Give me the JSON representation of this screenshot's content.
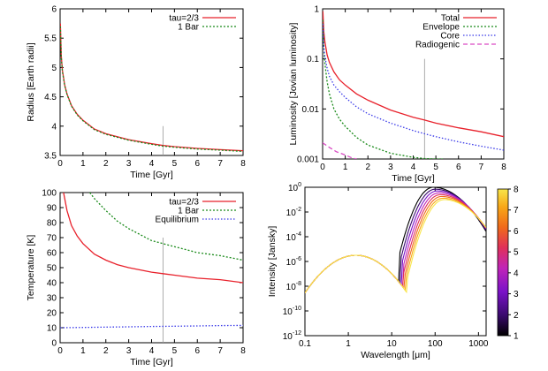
{
  "chart_data": [
    {
      "id": "radius",
      "type": "line",
      "xlabel": "Time [Gyr]",
      "ylabel": "Radius [Earth radii]",
      "xlim": [
        0,
        8
      ],
      "ylim": [
        3.5,
        6
      ],
      "xticks": [
        "0",
        "1",
        "2",
        "3",
        "4",
        "5",
        "6",
        "7",
        "8"
      ],
      "yticks": [
        "3.5",
        "4",
        "4.5",
        "5",
        "5.5",
        "6"
      ],
      "legend": "top-right",
      "vline_x": 4.5,
      "series": [
        {
          "name": "tau=2/3",
          "color": "#e8212b",
          "dash": "",
          "x": [
            0.01,
            0.05,
            0.1,
            0.2,
            0.3,
            0.5,
            0.75,
            1,
            1.5,
            2,
            2.5,
            3,
            4,
            4.5,
            5,
            6,
            7,
            8
          ],
          "y": [
            5.75,
            5.2,
            4.95,
            4.7,
            4.55,
            4.35,
            4.2,
            4.1,
            3.95,
            3.87,
            3.82,
            3.77,
            3.7,
            3.67,
            3.65,
            3.62,
            3.6,
            3.58
          ]
        },
        {
          "name": "1 Bar",
          "color": "#1a8a1a",
          "dash": "2,2",
          "x": [
            0.01,
            0.05,
            0.1,
            0.2,
            0.3,
            0.5,
            0.75,
            1,
            1.5,
            2,
            2.5,
            3,
            4,
            4.5,
            5,
            6,
            7,
            8
          ],
          "y": [
            5.7,
            5.18,
            4.93,
            4.69,
            4.54,
            4.34,
            4.19,
            4.09,
            3.94,
            3.86,
            3.81,
            3.76,
            3.69,
            3.66,
            3.64,
            3.61,
            3.59,
            3.57
          ]
        }
      ]
    },
    {
      "id": "luminosity",
      "type": "line",
      "xlabel": "Time [Gyr]",
      "ylabel": "Luminosity [Jovian luminosity]",
      "xlim": [
        0,
        8
      ],
      "ylim": [
        0.001,
        1
      ],
      "yscale": "log",
      "xticks": [
        "0",
        "1",
        "2",
        "3",
        "4",
        "5",
        "6",
        "7",
        "8"
      ],
      "yticks": [
        "0.001",
        "0.01",
        "0.1",
        "1"
      ],
      "legend": "top-right",
      "vline_x": 4.5,
      "series": [
        {
          "name": "Total",
          "color": "#e8212b",
          "dash": "",
          "x": [
            0.01,
            0.05,
            0.1,
            0.2,
            0.3,
            0.5,
            0.75,
            1,
            1.5,
            2,
            3,
            4,
            4.5,
            5,
            6,
            7,
            8
          ],
          "y": [
            0.9,
            0.35,
            0.22,
            0.12,
            0.085,
            0.055,
            0.038,
            0.03,
            0.02,
            0.015,
            0.0095,
            0.0068,
            0.006,
            0.0052,
            0.0042,
            0.0035,
            0.0028
          ]
        },
        {
          "name": "Envelope",
          "color": "#1a8a1a",
          "dash": "2,2",
          "x": [
            0.01,
            0.05,
            0.1,
            0.2,
            0.3,
            0.5,
            0.75,
            1,
            1.5,
            2,
            3,
            4,
            4.5,
            5,
            5.3
          ],
          "y": [
            0.6,
            0.18,
            0.08,
            0.035,
            0.02,
            0.01,
            0.0062,
            0.0045,
            0.0027,
            0.0019,
            0.0013,
            0.00108,
            0.00102,
            0.001,
            0.001
          ]
        },
        {
          "name": "Core",
          "color": "#3a3ae8",
          "dash": "1.5,2",
          "x": [
            0.01,
            0.05,
            0.1,
            0.2,
            0.3,
            0.5,
            0.75,
            1,
            1.5,
            2,
            3,
            4,
            4.5,
            5,
            6,
            7,
            8
          ],
          "y": [
            0.5,
            0.17,
            0.11,
            0.065,
            0.045,
            0.03,
            0.022,
            0.017,
            0.011,
            0.008,
            0.0052,
            0.0037,
            0.0032,
            0.0028,
            0.0022,
            0.0018,
            0.0015
          ]
        },
        {
          "name": "Radiogenic",
          "color": "#d94ac4",
          "dash": "5,3",
          "x": [
            0,
            0.3,
            0.6,
            1,
            1.3,
            1.5
          ],
          "y": [
            0.0021,
            0.0017,
            0.0014,
            0.0012,
            0.00105,
            0.001
          ]
        }
      ]
    },
    {
      "id": "temperature",
      "type": "line",
      "xlabel": "Time [Gyr]",
      "ylabel": "Temperature [K]",
      "xlim": [
        0,
        8
      ],
      "ylim": [
        0,
        100
      ],
      "xticks": [
        "0",
        "1",
        "2",
        "3",
        "4",
        "5",
        "6",
        "7",
        "8"
      ],
      "yticks": [
        "0",
        "10",
        "20",
        "30",
        "40",
        "50",
        "60",
        "70",
        "80",
        "90",
        "100"
      ],
      "legend": "top-right",
      "vline_x": 4.5,
      "series": [
        {
          "name": "tau=2/3",
          "color": "#e8212b",
          "dash": "",
          "x": [
            0.15,
            0.3,
            0.5,
            0.75,
            1,
            1.5,
            2,
            2.5,
            3,
            4,
            4.5,
            5,
            6,
            7,
            8
          ],
          "y": [
            100,
            88,
            78,
            71,
            66,
            59,
            55,
            52,
            50,
            47,
            46,
            45,
            43,
            42,
            40
          ]
        },
        {
          "name": "1 Bar",
          "color": "#1a8a1a",
          "dash": "2,2",
          "x": [
            1.3,
            1.5,
            2,
            2.5,
            3,
            3.5,
            4,
            4.5,
            5,
            6,
            7,
            8
          ],
          "y": [
            100,
            96,
            88,
            81,
            76,
            72,
            68,
            66,
            64,
            60,
            58,
            55
          ]
        },
        {
          "name": "Equilibrium",
          "color": "#3a3ae8",
          "dash": "1.5,2",
          "x": [
            0,
            1,
            2,
            3,
            4,
            5,
            6,
            7,
            8
          ],
          "y": [
            10,
            10.2,
            10.4,
            10.6,
            10.8,
            11,
            11.2,
            11.4,
            11.5
          ]
        }
      ]
    },
    {
      "id": "spectrum",
      "type": "line",
      "xlabel": "Wavelength [μm]",
      "ylabel": "Intensity [Jansky]",
      "xscale": "log",
      "yscale": "log",
      "xlim": [
        0.1,
        1500
      ],
      "ylim": [
        1e-12,
        1
      ],
      "xticks": [
        "0.1",
        "1",
        "10",
        "100",
        "1000"
      ],
      "ytick_labels": [
        {
          "base": "10",
          "exp": "0"
        },
        {
          "base": "10",
          "exp": "-2"
        },
        {
          "base": "10",
          "exp": "-4"
        },
        {
          "base": "10",
          "exp": "-6"
        },
        {
          "base": "10",
          "exp": "-8"
        },
        {
          "base": "10",
          "exp": "-10"
        },
        {
          "base": "10",
          "exp": "-12"
        }
      ],
      "colorbar": {
        "min": 1,
        "max": 8,
        "ticks": [
          "1",
          "2",
          "3",
          "4",
          "5",
          "6",
          "7",
          "8"
        ],
        "colors": [
          "#000000",
          "#3a0a6e",
          "#7a12c8",
          "#c024b8",
          "#e0305a",
          "#f06a1a",
          "#f8a818",
          "#f8e64a"
        ]
      },
      "vline_x": null,
      "series": [
        {
          "color": "#000000",
          "peak": 1.0,
          "peak_wl": 90,
          "edge_wl": 15,
          "edge_val": 5e-07
        },
        {
          "color": "#3a0a6e",
          "peak": 0.7,
          "peak_wl": 100,
          "edge_wl": 16,
          "edge_val": 5e-07
        },
        {
          "color": "#7a12c8",
          "peak": 0.5,
          "peak_wl": 110,
          "edge_wl": 17,
          "edge_val": 5e-07
        },
        {
          "color": "#c024b8",
          "peak": 0.35,
          "peak_wl": 120,
          "edge_wl": 18,
          "edge_val": 5e-07
        },
        {
          "color": "#e0305a",
          "peak": 0.25,
          "peak_wl": 130,
          "edge_wl": 19,
          "edge_val": 5e-07
        },
        {
          "color": "#f06a1a",
          "peak": 0.18,
          "peak_wl": 140,
          "edge_wl": 20,
          "edge_val": 5e-07
        },
        {
          "color": "#f8a818",
          "peak": 0.13,
          "peak_wl": 150,
          "edge_wl": 21,
          "edge_val": 5e-07
        },
        {
          "color": "#f8e64a",
          "peak": 0.1,
          "peak_wl": 160,
          "edge_wl": 22,
          "edge_val": 5e-07
        }
      ]
    }
  ]
}
